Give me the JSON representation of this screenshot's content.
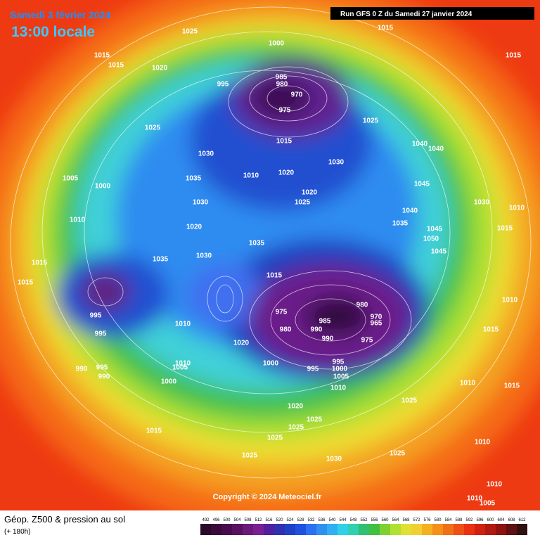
{
  "header": {
    "date": "Samedi 3 février 2024",
    "time": "13:00 locale",
    "run": "Run GFS 0 Z du Samedi 27 janvier 2024"
  },
  "copyright": "Copyright © 2024 Meteociel.fr",
  "footer": {
    "title": "Géop. Z500 & pression au sol",
    "lead": "(+ 180h)"
  },
  "legend": {
    "values": [
      492,
      496,
      500,
      504,
      508,
      512,
      516,
      520,
      524,
      528,
      532,
      536,
      540,
      544,
      548,
      552,
      556,
      560,
      564,
      568,
      572,
      576,
      580,
      584,
      588,
      592,
      596,
      600,
      604,
      608,
      612
    ]
  },
  "pressure_labels": [
    "1025",
    "1015",
    "1015",
    "1015",
    "1015",
    "1020",
    "1000",
    "995",
    "985",
    "980",
    "970",
    "975",
    "1025",
    "1025",
    "1015",
    "1030",
    "1040",
    "1040",
    "1030",
    "1010",
    "1020",
    "1035",
    "1000",
    "1005",
    "1020",
    "1025",
    "1030",
    "1045",
    "1030",
    "1010",
    "1040",
    "1035",
    "1045",
    "1050",
    "1015",
    "1010",
    "1020",
    "1035",
    "1045",
    "1030",
    "1035",
    "1015",
    "1015",
    "1015",
    "1010",
    "1015",
    "975",
    "980",
    "985",
    "990",
    "980",
    "970",
    "965",
    "975",
    "990",
    "995",
    "995",
    "1010",
    "1020",
    "1000",
    "995",
    "995",
    "1000",
    "1005",
    "1010",
    "1010",
    "1015",
    "990",
    "995",
    "990",
    "1010",
    "1005",
    "1000",
    "1020",
    "1025",
    "1025",
    "1025",
    "1015",
    "1025",
    "1010",
    "1025",
    "1030",
    "1025",
    "1010",
    "1010",
    "1005"
  ]
}
